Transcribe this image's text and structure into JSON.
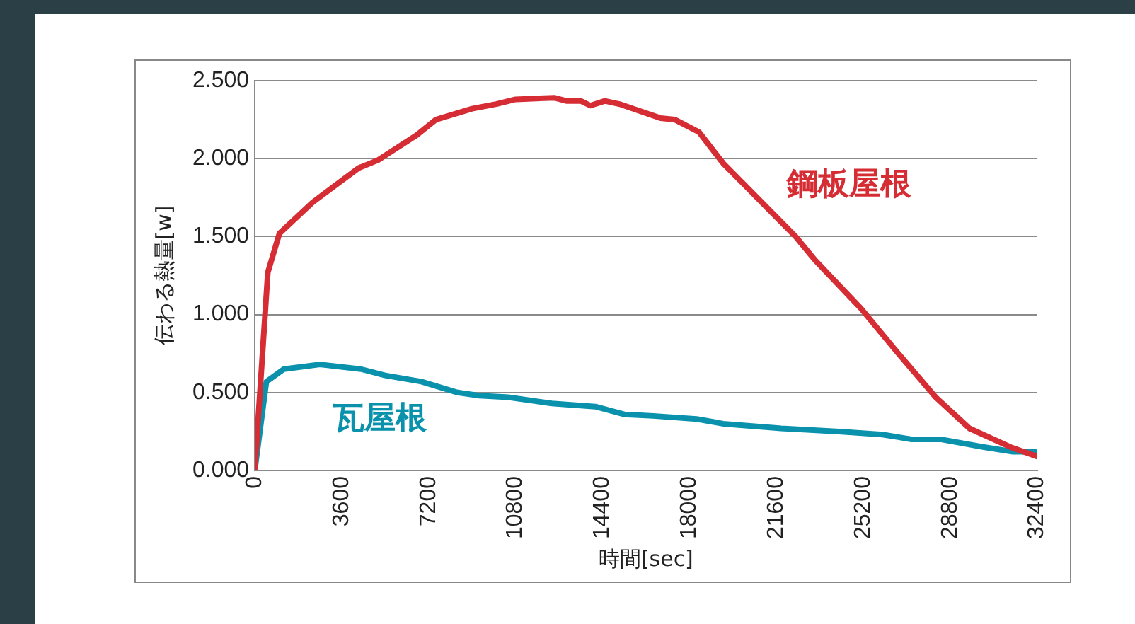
{
  "chart_data": {
    "type": "line",
    "xlabel": "時間[sec]",
    "ylabel": "伝わる熱量[w]",
    "xlim": [
      0,
      32400
    ],
    "xticks": [
      0,
      3600,
      7200,
      10800,
      14400,
      18000,
      21600,
      25200,
      28800,
      32400
    ],
    "ylim": [
      0,
      2.5
    ],
    "yticks": [
      {
        "value": 0,
        "label": "0.000"
      },
      {
        "value": 0.5,
        "label": "0.500"
      },
      {
        "value": 1,
        "label": "1.000"
      },
      {
        "value": 1.5,
        "label": "1.500"
      },
      {
        "value": 2,
        "label": "2.000"
      },
      {
        "value": 2.5,
        "label": "2.500"
      }
    ],
    "grid": "y",
    "legend": false,
    "marker": "none",
    "line_style": "solid",
    "series": [
      {
        "name": "鋼板屋根",
        "color": "#d62c34",
        "x": [
          0,
          540,
          1020,
          2400,
          4300,
          5100,
          6700,
          7500,
          9000,
          10000,
          10800,
          12400,
          12900,
          13500,
          13900,
          14500,
          15100,
          16800,
          17400,
          18400,
          19400,
          22400,
          23200,
          25100,
          26600,
          28200,
          29600,
          31300,
          32400
        ],
        "values": [
          0,
          1.27,
          1.52,
          1.72,
          1.94,
          1.99,
          2.15,
          2.25,
          2.32,
          2.35,
          2.38,
          2.39,
          2.37,
          2.37,
          2.34,
          2.37,
          2.35,
          2.26,
          2.25,
          2.17,
          1.97,
          1.5,
          1.35,
          1.04,
          0.76,
          0.47,
          0.27,
          0.15,
          0.09
        ]
      },
      {
        "name": "瓦屋根",
        "color": "#0a92ad",
        "x": [
          0,
          480,
          1200,
          2700,
          4400,
          5400,
          6900,
          8400,
          9300,
          10500,
          12300,
          14100,
          15300,
          16500,
          18300,
          19400,
          21800,
          24200,
          26000,
          27200,
          28400,
          30200,
          31400,
          32400
        ],
        "values": [
          0,
          0.57,
          0.65,
          0.68,
          0.65,
          0.61,
          0.57,
          0.5,
          0.48,
          0.47,
          0.43,
          0.41,
          0.36,
          0.35,
          0.33,
          0.3,
          0.27,
          0.25,
          0.23,
          0.2,
          0.2,
          0.15,
          0.12,
          0.12
        ]
      }
    ]
  }
}
